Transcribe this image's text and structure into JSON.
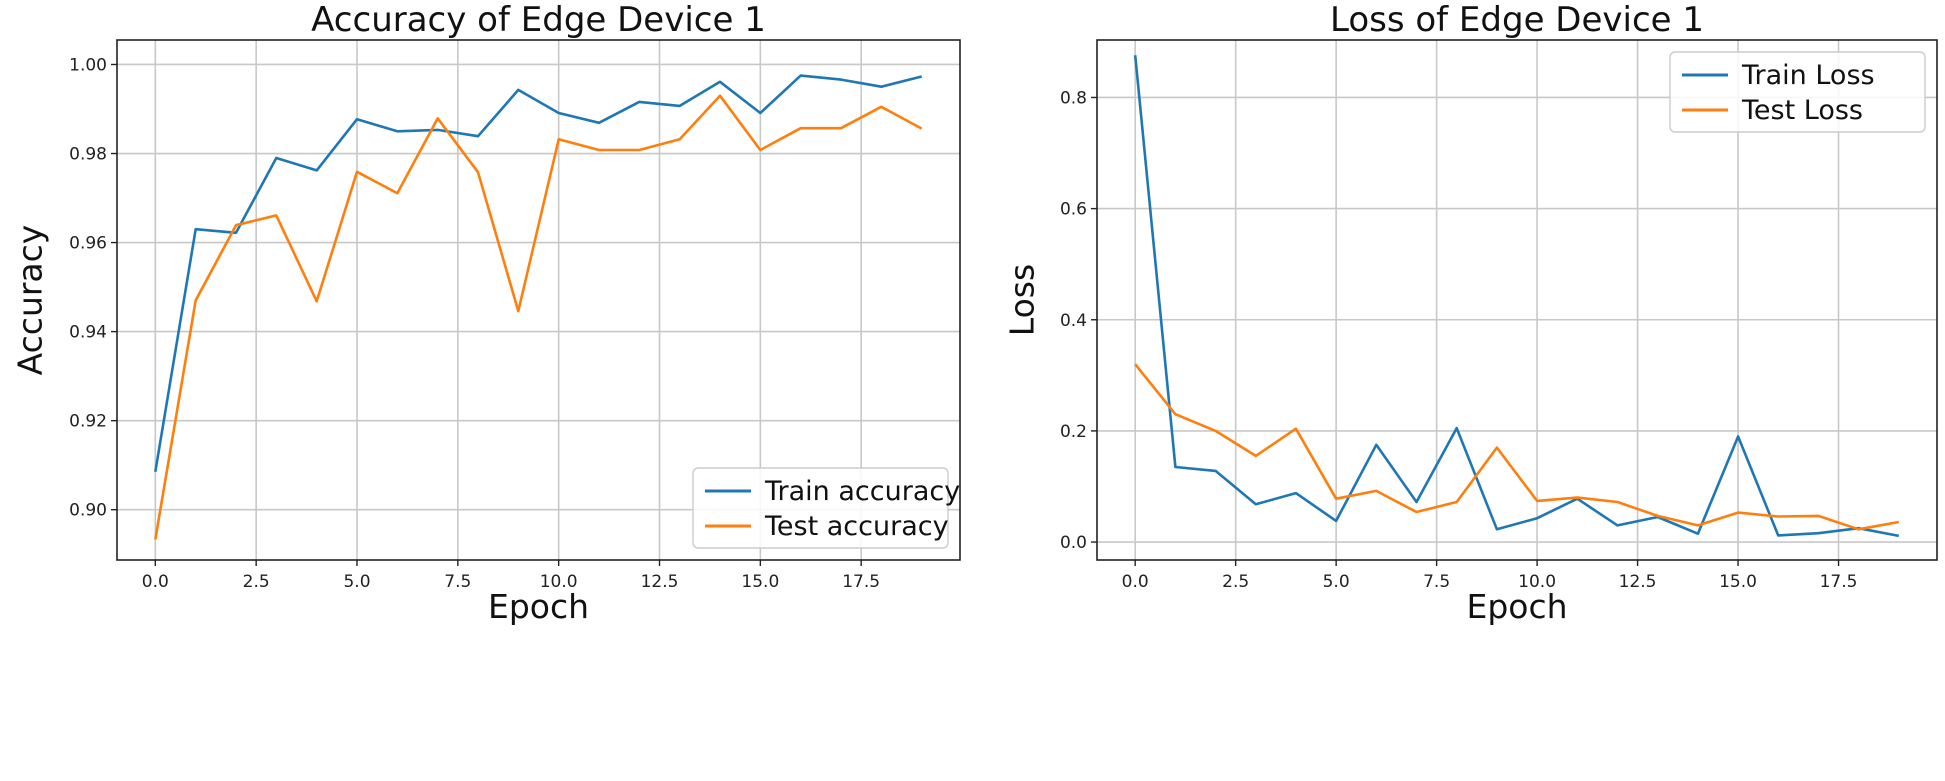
{
  "chart_data": [
    {
      "type": "line",
      "title": "Accuracy of Edge Device 1",
      "xlabel": "Epoch",
      "ylabel": "Accuracy",
      "xlim": [
        -0.95,
        19.95
      ],
      "ylim": [
        0.8887,
        1.0055
      ],
      "xticks": [
        0.0,
        2.5,
        5.0,
        7.5,
        10.0,
        12.5,
        15.0,
        17.5
      ],
      "xtick_labels": [
        "0.0",
        "2.5",
        "5.0",
        "7.5",
        "10.0",
        "12.5",
        "15.0",
        "17.5"
      ],
      "yticks": [
        0.9,
        0.92,
        0.94,
        0.96,
        0.98,
        1.0
      ],
      "ytick_labels": [
        "0.90",
        "0.92",
        "0.94",
        "0.96",
        "0.98",
        "1.00"
      ],
      "grid": true,
      "legend_position": "lower-right",
      "x": [
        0,
        1,
        2,
        3,
        4,
        5,
        6,
        7,
        8,
        9,
        10,
        11,
        12,
        13,
        14,
        15,
        16,
        17,
        18,
        19
      ],
      "series": [
        {
          "name": "Train accuracy",
          "color": "#1f77b4",
          "values": [
            0.9085,
            0.963,
            0.9622,
            0.979,
            0.9762,
            0.9877,
            0.985,
            0.9853,
            0.9839,
            0.9943,
            0.9891,
            0.9869,
            0.9916,
            0.9907,
            0.9961,
            0.9891,
            0.9975,
            0.9966,
            0.995,
            0.9973
          ]
        },
        {
          "name": "Test accuracy",
          "color": "#ff7f0e",
          "values": [
            0.8933,
            0.947,
            0.9639,
            0.9661,
            0.9468,
            0.9759,
            0.9711,
            0.9879,
            0.9758,
            0.9446,
            0.9832,
            0.9808,
            0.9808,
            0.9832,
            0.993,
            0.9808,
            0.9857,
            0.9857,
            0.9905,
            0.9856
          ]
        }
      ]
    },
    {
      "type": "line",
      "title": "Loss of Edge Device 1",
      "xlabel": "Epoch",
      "ylabel": "Loss",
      "xlim": [
        -0.95,
        19.95
      ],
      "ylim": [
        -0.0323,
        0.9034
      ],
      "xticks": [
        0.0,
        2.5,
        5.0,
        7.5,
        10.0,
        12.5,
        15.0,
        17.5
      ],
      "xtick_labels": [
        "0.0",
        "2.5",
        "5.0",
        "7.5",
        "10.0",
        "12.5",
        "15.0",
        "17.5"
      ],
      "yticks": [
        0.0,
        0.2,
        0.4,
        0.6,
        0.8
      ],
      "ytick_labels": [
        "0.0",
        "0.2",
        "0.4",
        "0.6",
        "0.8"
      ],
      "grid": true,
      "legend_position": "top-right",
      "x": [
        0,
        1,
        2,
        3,
        4,
        5,
        6,
        7,
        8,
        9,
        10,
        11,
        12,
        13,
        14,
        15,
        16,
        17,
        18,
        19
      ],
      "series": [
        {
          "name": "Train Loss",
          "color": "#1f77b4",
          "values": [
            0.876,
            0.135,
            0.128,
            0.068,
            0.088,
            0.038,
            0.175,
            0.072,
            0.205,
            0.023,
            0.043,
            0.078,
            0.03,
            0.045,
            0.015,
            0.19,
            0.012,
            0.016,
            0.025,
            0.011
          ]
        },
        {
          "name": "Test Loss",
          "color": "#ff7f0e",
          "values": [
            0.32,
            0.23,
            0.2,
            0.155,
            0.204,
            0.078,
            0.092,
            0.054,
            0.072,
            0.17,
            0.074,
            0.08,
            0.072,
            0.047,
            0.03,
            0.053,
            0.046,
            0.047,
            0.023,
            0.036
          ]
        }
      ]
    }
  ]
}
